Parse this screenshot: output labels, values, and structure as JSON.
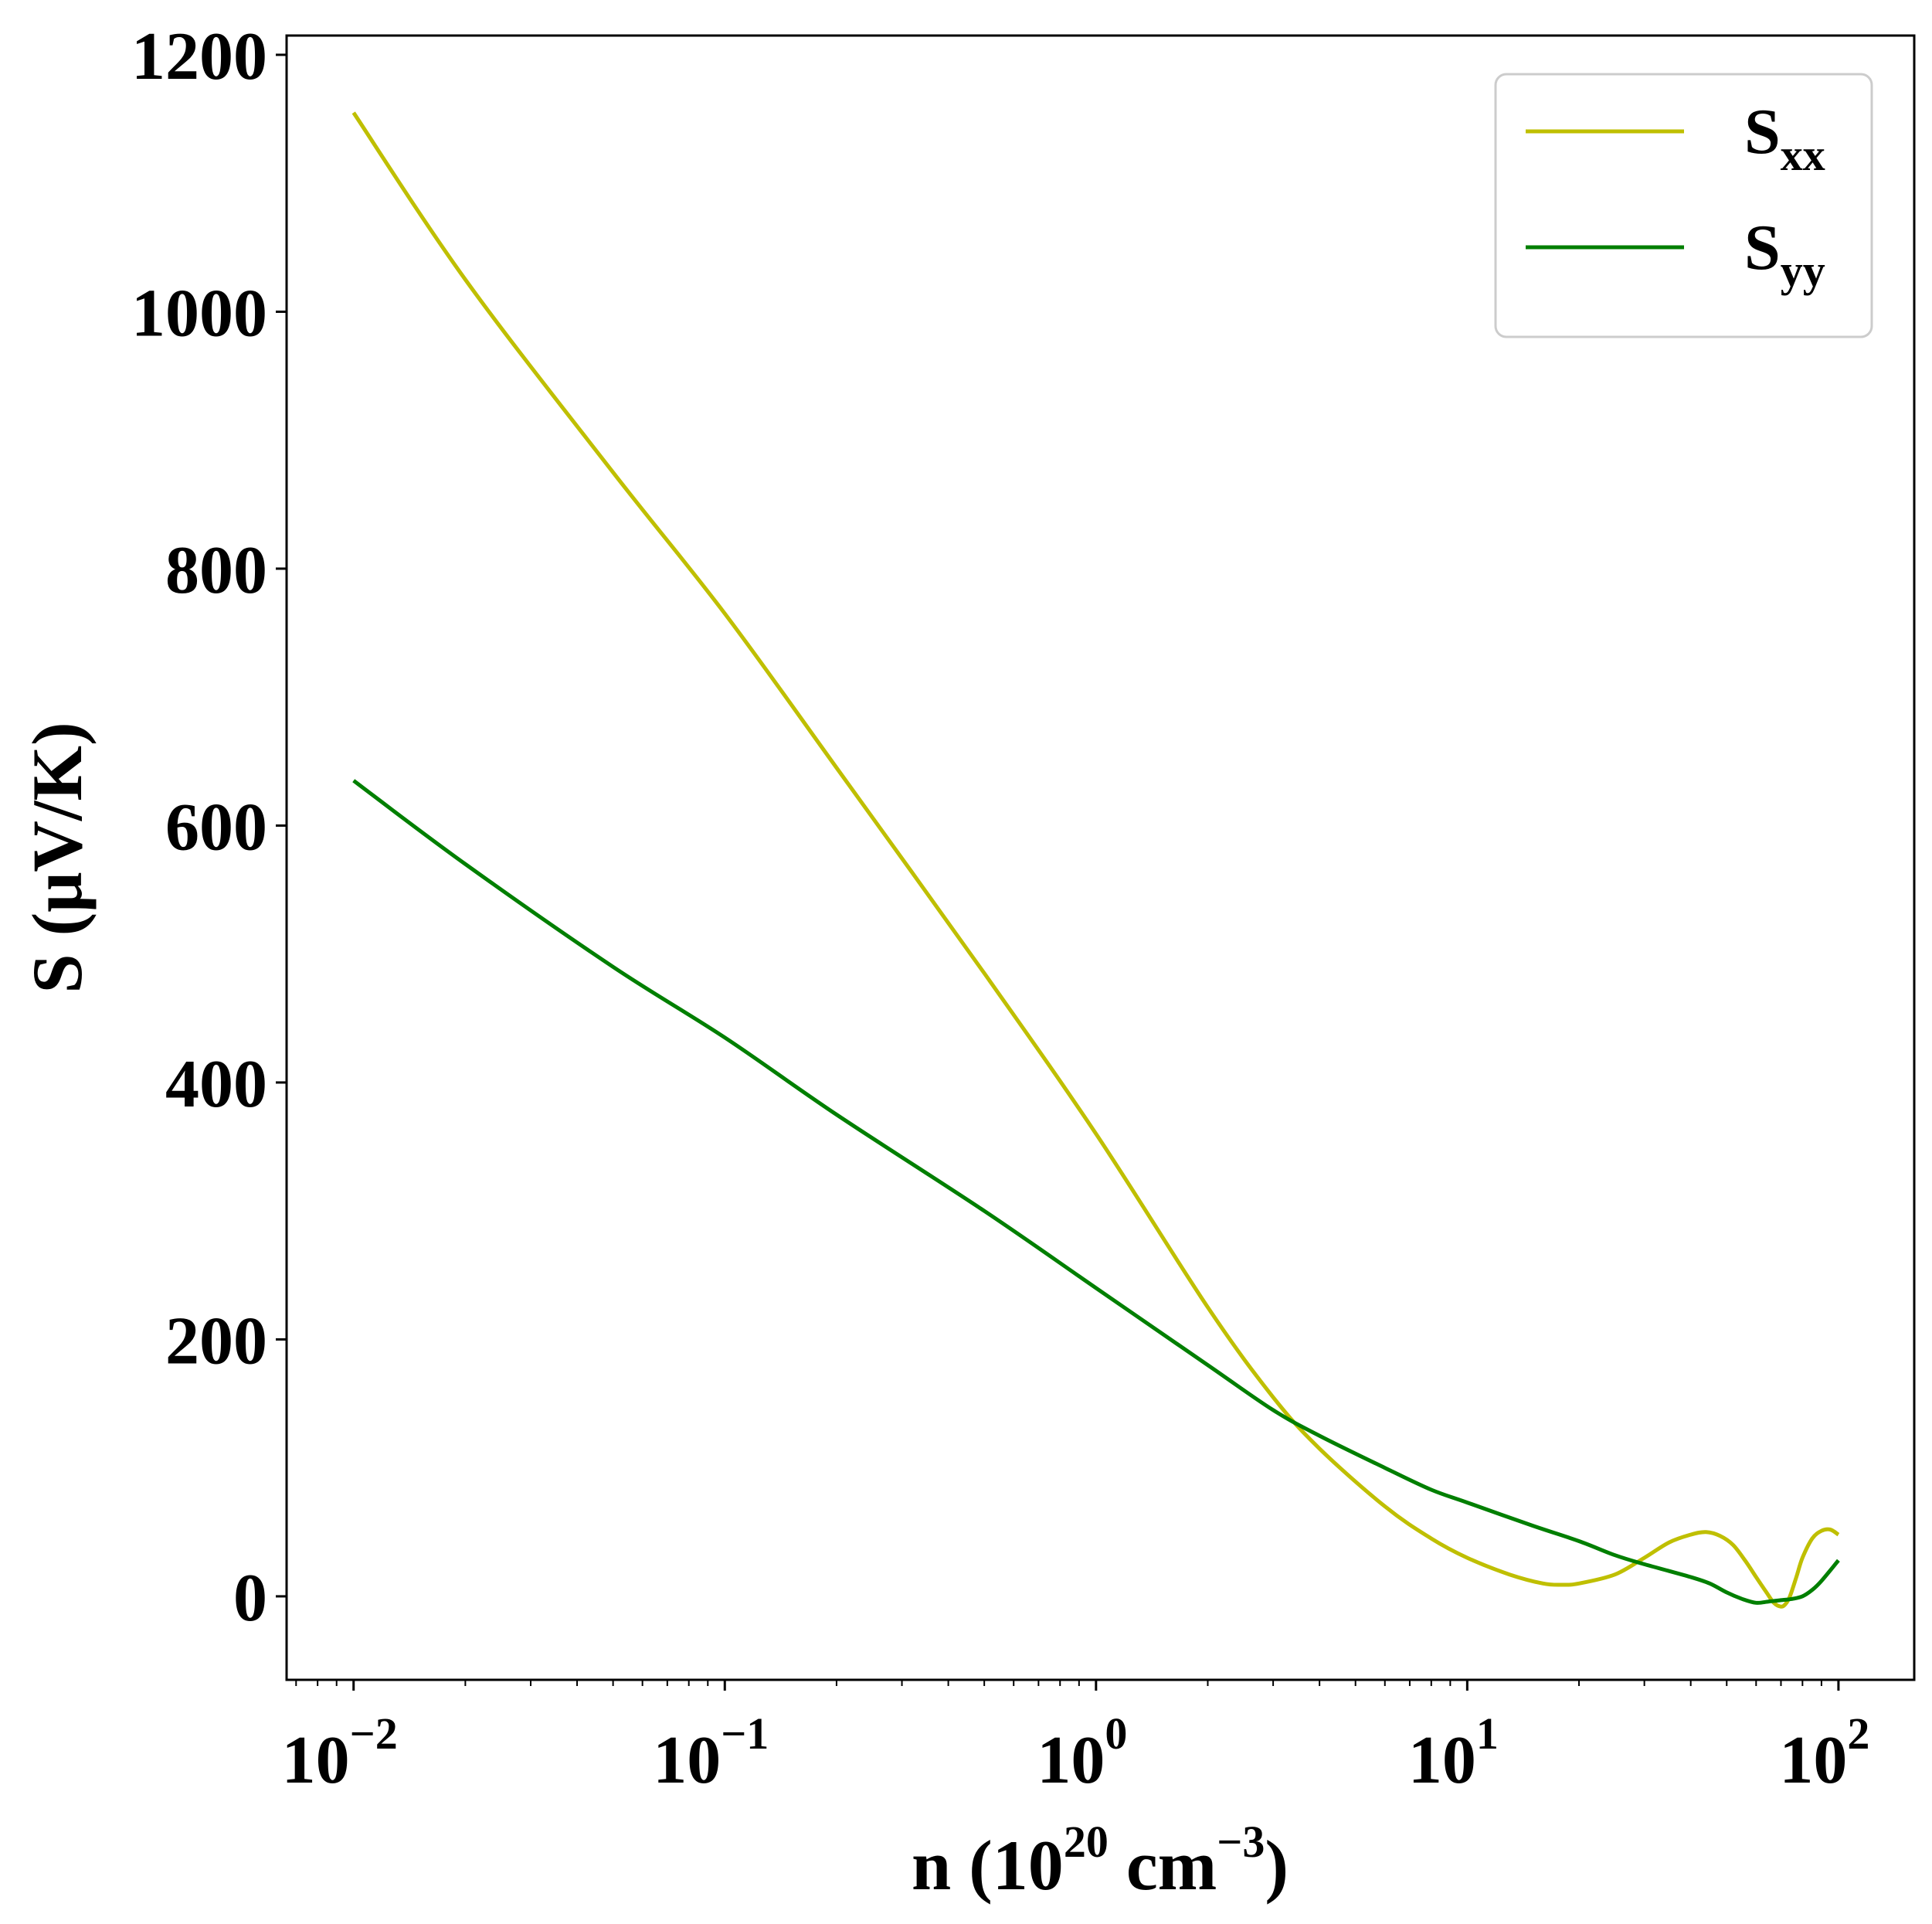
{
  "chart_data": {
    "type": "line",
    "xscale": "log",
    "xlim": [
      0.0066,
      160
    ],
    "ylim": [
      -65,
      1215
    ],
    "x_ticks": [
      {
        "base": "10",
        "exp": "−2"
      },
      {
        "base": "10",
        "exp": "−1"
      },
      {
        "base": "10",
        "exp": "0"
      },
      {
        "base": "10",
        "exp": "1"
      },
      {
        "base": "10",
        "exp": "2"
      }
    ],
    "y_ticks": [
      "0",
      "200",
      "400",
      "600",
      "800",
      "1000",
      "1200"
    ],
    "xlabel": {
      "prefix": "n (10",
      "sup1": "20",
      "middle": " cm",
      "sup2": "−3",
      "suffix": ")"
    },
    "ylabel": "S (μV/K)",
    "legend_position": "top-right",
    "series": [
      {
        "name": "S",
        "name_sub": "xx",
        "color": "#bfbf00",
        "x": [
          0.01,
          0.02,
          0.05,
          0.1,
          0.2,
          0.5,
          1,
          2,
          3,
          4,
          6,
          8,
          10,
          13,
          16,
          18,
          20,
          25,
          30,
          35,
          40,
          44,
          48,
          52,
          56,
          60,
          64,
          67,
          70,
          72,
          74,
          77,
          80,
          85,
          90,
          95,
          100
        ],
        "y": [
          1155,
          1025,
          875,
          765,
          645,
          485,
          360,
          225,
          155,
          115,
          70,
          45,
          30,
          17,
          10,
          9,
          10,
          17,
          30,
          42,
          48,
          50,
          47,
          40,
          28,
          15,
          3,
          -5,
          -8,
          -6,
          0,
          15,
          30,
          45,
          51,
          52,
          48
        ]
      },
      {
        "name": "S",
        "name_sub": "yy",
        "color": "#007f00",
        "x": [
          0.01,
          0.02,
          0.05,
          0.1,
          0.2,
          0.5,
          1,
          2,
          3,
          4,
          6,
          8,
          10,
          15,
          20,
          25,
          30,
          40,
          45,
          50,
          55,
          60,
          65,
          70,
          75,
          80,
          85,
          90,
          100
        ],
        "y": [
          635,
          570,
          490,
          435,
          375,
          300,
          240,
          180,
          145,
          125,
          100,
          83,
          73,
          55,
          43,
          32,
          25,
          15,
          10,
          3,
          -2,
          -5,
          -4,
          -3,
          -2,
          0,
          5,
          12,
          28
        ]
      }
    ]
  }
}
